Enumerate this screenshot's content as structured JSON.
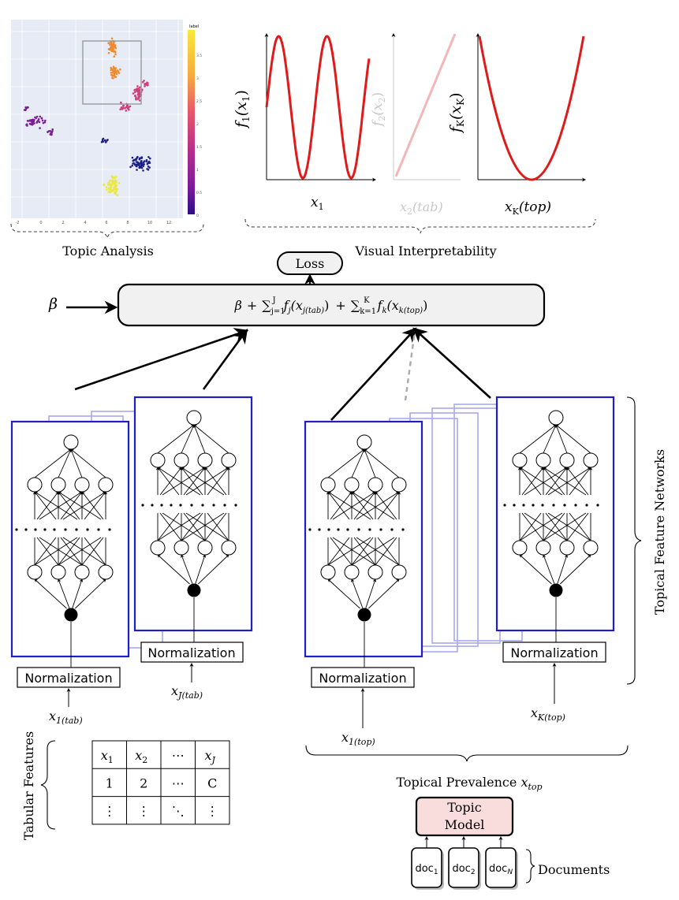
{
  "scatter_panel": {
    "tick_x": [
      "-2",
      "0",
      "2",
      "4",
      "6",
      "8",
      "10",
      "12"
    ],
    "colorbar_label": "label",
    "colorbar_ticks": [
      "3.5",
      "3",
      "2.5",
      "2",
      "1.5",
      "1",
      "0.5",
      "0"
    ],
    "colorbar_colors": [
      "#f8e93b",
      "#f6a93f",
      "#e6556c",
      "#b62f8b",
      "#7d1a9c",
      "#2b0f86"
    ],
    "clusters": [
      {
        "name": "orange",
        "color": "#ef8a2e"
      },
      {
        "name": "pink",
        "color": "#cc3f7a"
      },
      {
        "name": "purple",
        "color": "#7a1f98"
      },
      {
        "name": "navy",
        "color": "#1d1f84"
      },
      {
        "name": "yellow",
        "color": "#ece840"
      }
    ]
  },
  "labels": {
    "topic_analysis": "Topic Analysis",
    "visual_interpretability": "Visual Interpretability",
    "loss": "Loss",
    "beta": "β",
    "topical_feature_networks": "Topical Feature Networks",
    "topical_prevalence": "Topical Prevalence",
    "topical_prevalence_sym": "x",
    "topical_prevalence_sub": "top",
    "tabular_features": "Tabular Features",
    "topic_model_line1": "Topic",
    "topic_model_line2": "Model",
    "documents": "Documents",
    "normalization": "Normalization"
  },
  "formula": {
    "beta": "β",
    "plus": "+",
    "sum": "∑",
    "j_sub": "j=1",
    "j_sup": "J",
    "k_sub": "k=1",
    "k_sup": "K",
    "term1": "f",
    "term1_sub": "j",
    "term1_arg": "(x",
    "term1_arg_sub": "j(tab)",
    "term2": "f",
    "term2_sub": "k",
    "term2_arg": "(x",
    "term2_arg_sub": "k(top)",
    "close": ")"
  },
  "shape_plots": [
    {
      "ylabel": "f",
      "ylabel_sub": "1",
      "ylabel_arg": "(x",
      "ylabel_arg_sub": "1",
      "xlabel": "x",
      "xlabel_sub": "1",
      "xlabel_tail": ""
    },
    {
      "ylabel": "f",
      "ylabel_sub": "2",
      "ylabel_arg": "(x",
      "ylabel_arg_sub": "2",
      "xlabel": "x",
      "xlabel_sub": "2",
      "xlabel_tail": "(tab)"
    },
    {
      "ylabel": "f",
      "ylabel_sub": "K",
      "ylabel_arg": "(x",
      "ylabel_arg_sub": "K",
      "xlabel": "x",
      "xlabel_sub": "K",
      "xlabel_tail": "(top)"
    }
  ],
  "inputs": {
    "x1_tab": {
      "sym": "x",
      "sub": "1(tab)"
    },
    "xJ_tab": {
      "sym": "x",
      "sub": "J(tab)"
    },
    "x1_top": {
      "sym": "x",
      "sub": "1(top)"
    },
    "xK_top": {
      "sym": "x",
      "sub": "K(top)"
    }
  },
  "table": {
    "headers": [
      {
        "sym": "x",
        "sub": "1"
      },
      {
        "sym": "x",
        "sub": "2"
      },
      {
        "sym": "⋯",
        "sub": ""
      },
      {
        "sym": "x",
        "sub": "J"
      }
    ],
    "row1": [
      "1",
      "2",
      "⋯",
      "C"
    ],
    "row2": [
      "⋮",
      "⋮",
      "⋱",
      "⋮"
    ]
  },
  "documents": [
    {
      "label": "doc",
      "sub": "1"
    },
    {
      "label": "doc",
      "sub": "2"
    },
    {
      "label": "doc",
      "sub": "N"
    }
  ],
  "colors": {
    "network_box": "#1f1fc8",
    "network_ghost": "#a9a9ee",
    "curve": "#e01919",
    "curve_faded": "#f2b8b8",
    "topic_model_fill": "#f9dcdc"
  }
}
